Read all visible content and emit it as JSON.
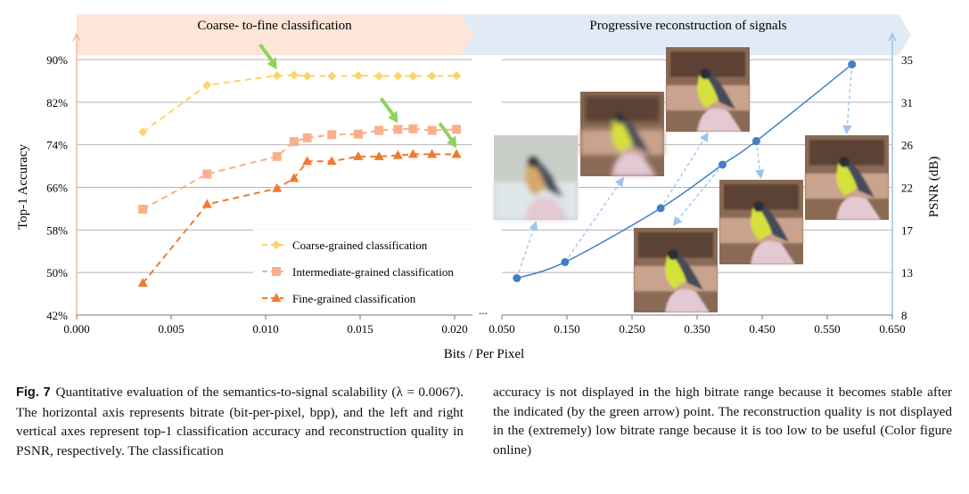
{
  "banners": {
    "left": "Coarse- to-fine classification",
    "right": "Progressive reconstruction of signals"
  },
  "colors": {
    "banner_left": "#fde5d8",
    "banner_right": "#e1ebf6",
    "coarse": "#fdd46a",
    "intermediate": "#f8b08a",
    "fine": "#f07a32",
    "psnr": "#3f7fc4",
    "green_arrow": "#8fd35e",
    "grid": "#b5b5b5"
  },
  "chart_data": [
    {
      "type": "line",
      "xlabel": "Bits / Per Pixel",
      "ylabel": "Top-1 Accuracy",
      "xlim": [
        0.0,
        0.02
      ],
      "ylim": [
        42,
        90
      ],
      "x_ticks": [
        "0.000",
        "0.005",
        "0.010",
        "0.015",
        "0.020"
      ],
      "y_ticks": [
        "42%",
        "50%",
        "58%",
        "66%",
        "74%",
        "82%",
        "90%"
      ],
      "grid": true,
      "legend_placement": "bottom-right",
      "x": [
        0.0035,
        0.0069,
        0.0106,
        0.0115,
        0.0122,
        0.0135,
        0.0149,
        0.016,
        0.017,
        0.0178,
        0.0188,
        0.0201
      ],
      "series": [
        {
          "name": "Coarse-grained classification",
          "marker": "diamond",
          "values": [
            76.4,
            85.2,
            87.0,
            87.1,
            86.9,
            86.9,
            87.0,
            86.9,
            86.9,
            86.9,
            86.9,
            87.0
          ],
          "green_arrow_at": 0.0106
        },
        {
          "name": "Intermediate-grained classification",
          "marker": "square",
          "values": [
            61.9,
            68.5,
            71.8,
            74.6,
            75.3,
            75.9,
            76.0,
            76.7,
            76.9,
            77.0,
            76.7,
            76.9
          ],
          "green_arrow_at": 0.017
        },
        {
          "name": "Fine-grained classification",
          "marker": "triangle",
          "values": [
            48.0,
            62.8,
            65.8,
            67.7,
            70.9,
            70.9,
            71.8,
            71.8,
            72.0,
            72.2,
            72.2,
            72.2
          ],
          "green_arrow_at": 0.0201
        }
      ],
      "axis_break": "..."
    },
    {
      "type": "line",
      "ylabel": "PSNR (dB)",
      "xlim": [
        0.05,
        0.65
      ],
      "ylim": [
        8,
        35
      ],
      "x_ticks": [
        "0.050",
        "0.150",
        "0.250",
        "0.350",
        "0.450",
        "0.550",
        "0.650"
      ],
      "y_ticks": [
        "8",
        "13",
        "17",
        "22",
        "26",
        "31",
        "35"
      ],
      "grid": true,
      "series": [
        {
          "marker": "circle",
          "x": [
            0.073,
            0.147,
            0.294,
            0.389,
            0.441,
            0.588
          ],
          "values": [
            11.9,
            13.6,
            19.3,
            23.9,
            26.4,
            34.5
          ]
        }
      ]
    }
  ],
  "caption": {
    "label": "Fig. 7",
    "left": "Quantitative evaluation of the semantics-to-signal scalability (λ = 0.0067). The horizontal axis represents bitrate (bit-per-pixel, bpp), and the left and right vertical axes represent top-1 classification accuracy and reconstruction quality in PSNR, respectively. The classification",
    "right": "accuracy is not displayed in the high bitrate range because it becomes stable after the indicated (by the green arrow) point. The reconstruction quality is not displayed in the (extremely) low bitrate range because it is too low to be useful (Color figure online)"
  }
}
